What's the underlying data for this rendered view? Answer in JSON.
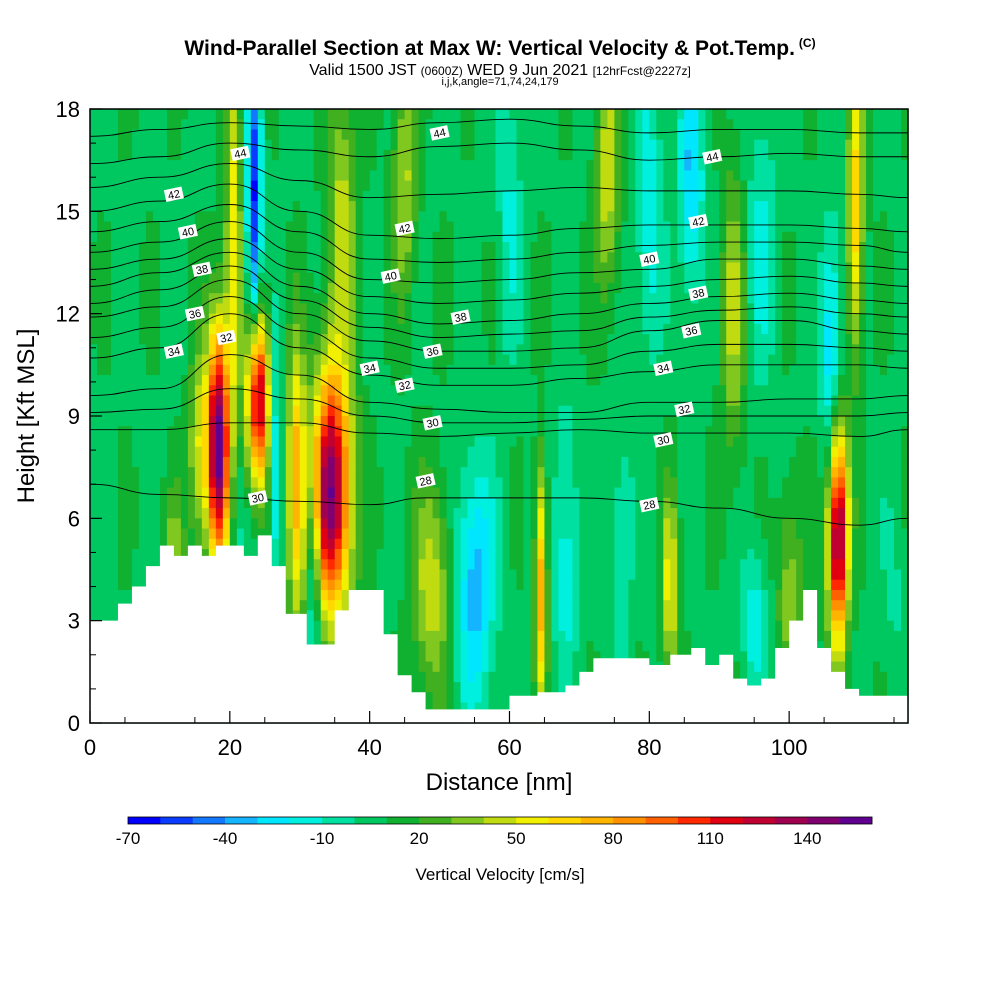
{
  "header": {
    "title": "Wind-Parallel Section at Max W: Vertical Velocity & Pot.Temp.",
    "title_mark": "(C)",
    "sub_left": "Valid 1500 JST",
    "sub_small1": "(0600Z)",
    "sub_mid": "WED 9 Jun 2021",
    "sub_small2": "[12hrFcst@2227z]",
    "params": "i,j,k,angle=71,74,24,179"
  },
  "chart_data": {
    "type": "heatmap",
    "title": "Wind-Parallel Section at Max W: Vertical Velocity & Pot.Temp.",
    "xlabel": "Distance [nm]",
    "ylabel": "Height [Kft MSL]",
    "xlim": [
      0,
      117
    ],
    "ylim": [
      0,
      18
    ],
    "x_ticks": [
      0,
      20,
      40,
      60,
      80,
      100
    ],
    "y_ticks": [
      0,
      3,
      6,
      9,
      12,
      15,
      18
    ],
    "colorbar": {
      "title": "Vertical Velocity [cm/s]",
      "tick_labels": [
        "-70",
        "-40",
        "-10",
        "20",
        "50",
        "80",
        "110",
        "140"
      ],
      "colors": [
        "#0000ff",
        "#0a3cff",
        "#1478ff",
        "#14b4ff",
        "#00e6ff",
        "#00f0e0",
        "#00e0a0",
        "#00c860",
        "#10b030",
        "#40b020",
        "#80c820",
        "#c0dc10",
        "#f0f000",
        "#ffd800",
        "#ffb400",
        "#ff9000",
        "#ff6000",
        "#ff2800",
        "#e00010",
        "#c00030",
        "#a00050",
        "#800070",
        "#600090"
      ]
    },
    "w_field": {
      "background_cm_s": 8,
      "cells": [
        {
          "x": 20.5,
          "y": 14,
          "sx": 0.8,
          "sy": 4,
          "w": 50
        },
        {
          "x": 23.5,
          "y": 15,
          "sx": 0.7,
          "sy": 3.5,
          "w": -70
        },
        {
          "x": 18.3,
          "y": 8.2,
          "sx": 1.1,
          "sy": 2.4,
          "w": 150
        },
        {
          "x": 24,
          "y": 9.5,
          "sx": 1.1,
          "sy": 1.8,
          "w": 130
        },
        {
          "x": 29.5,
          "y": 7,
          "sx": 0.9,
          "sy": 2.8,
          "w": 70
        },
        {
          "x": 34.5,
          "y": 6.8,
          "sx": 2,
          "sy": 2.5,
          "w": 140
        },
        {
          "x": 32,
          "y": 4.5,
          "sx": 0.7,
          "sy": 2.5,
          "w": -40
        },
        {
          "x": 26.5,
          "y": 7.5,
          "sx": 0.6,
          "sy": 2.5,
          "w": -35
        },
        {
          "x": 21,
          "y": 6,
          "sx": 0.6,
          "sy": 2.5,
          "w": -15
        },
        {
          "x": 15.5,
          "y": 8,
          "sx": 1,
          "sy": 2,
          "w": 40
        },
        {
          "x": 55,
          "y": 4,
          "sx": 2,
          "sy": 2.5,
          "w": -45
        },
        {
          "x": 49,
          "y": 4,
          "sx": 2,
          "sy": 2.2,
          "w": 40
        },
        {
          "x": 64.5,
          "y": 4,
          "sx": 0.6,
          "sy": 2.5,
          "w": 70
        },
        {
          "x": 68,
          "y": 5,
          "sx": 1.2,
          "sy": 3,
          "w": -25
        },
        {
          "x": 60,
          "y": 15,
          "sx": 1.2,
          "sy": 3,
          "w": -20
        },
        {
          "x": 45,
          "y": 16,
          "sx": 1.2,
          "sy": 2.5,
          "w": 35
        },
        {
          "x": 36,
          "y": 15,
          "sx": 1.5,
          "sy": 3,
          "w": 35
        },
        {
          "x": 74,
          "y": 16,
          "sx": 1.2,
          "sy": 2.5,
          "w": 40
        },
        {
          "x": 80,
          "y": 15,
          "sx": 1.4,
          "sy": 3,
          "w": -25
        },
        {
          "x": 86,
          "y": 16,
          "sx": 1.2,
          "sy": 2.5,
          "w": -40
        },
        {
          "x": 92,
          "y": 12,
          "sx": 1.2,
          "sy": 3,
          "w": 35
        },
        {
          "x": 96,
          "y": 14,
          "sx": 1.5,
          "sy": 3,
          "w": -20
        },
        {
          "x": 107,
          "y": 5.5,
          "sx": 1,
          "sy": 2.2,
          "w": 140
        },
        {
          "x": 106,
          "y": 11,
          "sx": 1,
          "sy": 2.5,
          "w": -40
        },
        {
          "x": 109.5,
          "y": 15,
          "sx": 0.8,
          "sy": 3,
          "w": 60
        },
        {
          "x": 112,
          "y": 14,
          "sx": 1.5,
          "sy": 3,
          "w": 0
        },
        {
          "x": 95,
          "y": 3,
          "sx": 1.2,
          "sy": 1.5,
          "w": -25
        },
        {
          "x": 83,
          "y": 4,
          "sx": 0.8,
          "sy": 2,
          "w": 50
        },
        {
          "x": 76,
          "y": 5,
          "sx": 1,
          "sy": 2.5,
          "w": -20
        },
        {
          "x": 5,
          "y": 12,
          "sx": 2.5,
          "sy": 3,
          "w": 0
        },
        {
          "x": 12,
          "y": 4.5,
          "sx": 1,
          "sy": 1.5,
          "w": 30
        },
        {
          "x": 100,
          "y": 4,
          "sx": 1.2,
          "sy": 2,
          "w": 30
        },
        {
          "x": 115,
          "y": 4,
          "sx": 1.2,
          "sy": 2,
          "w": -10
        }
      ]
    },
    "terrain_kft": [
      [
        0,
        3
      ],
      [
        4,
        3.5
      ],
      [
        6,
        4
      ],
      [
        8,
        4.6
      ],
      [
        10,
        5.2
      ],
      [
        12,
        4.9
      ],
      [
        14,
        5.2
      ],
      [
        16,
        4.9
      ],
      [
        18,
        5.2
      ],
      [
        20,
        5.2
      ],
      [
        22,
        4.9
      ],
      [
        24,
        5.5
      ],
      [
        26,
        4.6
      ],
      [
        28,
        3.2
      ],
      [
        31,
        2.3
      ],
      [
        33,
        2.3
      ],
      [
        35,
        3.3
      ],
      [
        37,
        3.9
      ],
      [
        40,
        3.9
      ],
      [
        42,
        2.6
      ],
      [
        44,
        1.4
      ],
      [
        46,
        0.9
      ],
      [
        48,
        0.4
      ],
      [
        56,
        0.4
      ],
      [
        60,
        0.8
      ],
      [
        64,
        0.9
      ],
      [
        68,
        1.1
      ],
      [
        70,
        1.5
      ],
      [
        72,
        1.9
      ],
      [
        78,
        1.9
      ],
      [
        80,
        1.7
      ],
      [
        83,
        2.0
      ],
      [
        86,
        2.2
      ],
      [
        88,
        1.7
      ],
      [
        90,
        2.0
      ],
      [
        92,
        1.3
      ],
      [
        94,
        1.1
      ],
      [
        96,
        1.3
      ],
      [
        98,
        2.2
      ],
      [
        100,
        3.0
      ],
      [
        102,
        3.9
      ],
      [
        104,
        2.2
      ],
      [
        106,
        1.5
      ],
      [
        108,
        1.0
      ],
      [
        110,
        0.8
      ],
      [
        117,
        0.8
      ]
    ],
    "theta_contours": {
      "unit": "label value as printed (Kelvin shorthand)",
      "lines": [
        {
          "label": 28,
          "x": [
            0,
            10,
            20,
            30,
            40,
            48,
            60,
            70,
            80,
            90,
            100,
            110,
            117
          ],
          "y": [
            7.0,
            6.7,
            6.6,
            6.5,
            6.4,
            6.6,
            6.6,
            6.6,
            6.5,
            6.3,
            6.0,
            5.8,
            6.0
          ]
        },
        {
          "label": 30,
          "x": [
            0,
            10,
            20,
            30,
            40,
            50,
            60,
            70,
            80,
            90,
            100,
            110,
            117
          ],
          "y": [
            8.6,
            8.6,
            8.8,
            8.8,
            8.5,
            8.4,
            8.5,
            8.6,
            8.5,
            8.5,
            8.5,
            8.4,
            8.6
          ]
        },
        {
          "label": 32,
          "x": [
            0,
            10,
            20,
            30,
            40,
            50,
            60,
            70,
            80,
            90,
            100,
            110,
            117
          ],
          "y": [
            9.6,
            9.8,
            10.8,
            10.2,
            9.4,
            9.2,
            9.1,
            9.1,
            9.4,
            9.4,
            9.5,
            9.5,
            9.6
          ]
        },
        {
          "label": 34,
          "x": [
            0,
            10,
            20,
            30,
            40,
            50,
            60,
            70,
            80,
            90,
            100,
            110,
            117
          ],
          "y": [
            10.7,
            11.0,
            12.0,
            11.0,
            10.2,
            9.9,
            9.9,
            10.1,
            10.3,
            10.5,
            10.5,
            10.5,
            10.4
          ]
        },
        {
          "label": 36,
          "x": [
            0,
            10,
            20,
            30,
            40,
            50,
            60,
            70,
            80,
            90,
            100,
            110,
            117
          ],
          "y": [
            11.9,
            12.2,
            13.0,
            12.0,
            11.2,
            10.9,
            10.9,
            11.0,
            11.5,
            11.8,
            11.8,
            11.5,
            11.4
          ]
        },
        {
          "label": 38,
          "x": [
            0,
            10,
            20,
            30,
            40,
            50,
            60,
            70,
            80,
            90,
            100,
            110,
            117
          ],
          "y": [
            12.8,
            13.2,
            13.8,
            12.8,
            12.0,
            11.7,
            11.8,
            12.0,
            12.3,
            12.5,
            12.6,
            12.4,
            12.3
          ]
        },
        {
          "label": 40,
          "x": [
            0,
            10,
            20,
            30,
            40,
            50,
            60,
            70,
            80,
            90,
            100,
            110,
            117
          ],
          "y": [
            13.8,
            14.1,
            14.7,
            13.8,
            13.0,
            12.9,
            13.0,
            13.2,
            13.3,
            13.6,
            13.6,
            13.4,
            13.3
          ]
        },
        {
          "label": 42,
          "x": [
            0,
            10,
            20,
            30,
            40,
            50,
            60,
            70,
            80,
            90,
            100,
            110,
            117
          ],
          "y": [
            15.0,
            15.3,
            15.8,
            15.0,
            14.3,
            14.2,
            14.3,
            14.5,
            14.6,
            14.6,
            14.6,
            14.5,
            14.4
          ]
        },
        {
          "label": 44,
          "x": [
            0,
            10,
            20,
            30,
            40,
            50,
            60,
            70,
            80,
            90,
            100,
            110,
            117
          ],
          "y": [
            16.4,
            16.6,
            17.0,
            16.8,
            16.6,
            16.9,
            17.0,
            16.8,
            16.5,
            16.6,
            16.7,
            16.6,
            16.6
          ]
        }
      ],
      "extra_lines": [
        {
          "x": [
            0,
            10,
            20,
            30,
            40,
            50,
            60,
            70,
            80,
            90,
            100,
            110,
            117
          ],
          "y": [
            11.3,
            11.6,
            12.5,
            11.5,
            10.7,
            10.4,
            10.4,
            10.5,
            10.9,
            11.1,
            11.1,
            11.0,
            10.9
          ]
        },
        {
          "x": [
            0,
            10,
            20,
            30,
            40,
            50,
            60,
            70,
            80,
            90,
            100,
            110,
            117
          ],
          "y": [
            12.3,
            12.7,
            13.4,
            12.4,
            11.6,
            11.3,
            11.4,
            11.5,
            11.9,
            12.1,
            12.2,
            12.0,
            11.9
          ]
        },
        {
          "x": [
            0,
            10,
            20,
            30,
            40,
            50,
            60,
            70,
            80,
            90,
            100,
            110,
            117
          ],
          "y": [
            13.3,
            13.6,
            14.2,
            13.3,
            12.5,
            12.3,
            12.4,
            12.6,
            12.8,
            13.0,
            13.1,
            12.9,
            12.8
          ]
        },
        {
          "x": [
            0,
            10,
            20,
            30,
            40,
            50,
            60,
            70,
            80,
            90,
            100,
            110,
            117
          ],
          "y": [
            14.4,
            14.7,
            15.2,
            14.4,
            13.6,
            13.5,
            13.6,
            13.8,
            14.0,
            14.1,
            14.1,
            14.0,
            13.8
          ]
        },
        {
          "x": [
            0,
            10,
            20,
            30,
            40,
            50,
            60,
            70,
            80,
            90,
            100,
            110,
            117
          ],
          "y": [
            15.7,
            16.0,
            16.4,
            15.9,
            15.4,
            15.5,
            15.6,
            15.7,
            15.6,
            15.6,
            15.6,
            15.5,
            15.4
          ]
        },
        {
          "x": [
            0,
            10,
            20,
            30,
            40,
            50,
            60,
            70,
            80,
            90,
            100,
            110,
            117
          ],
          "y": [
            17.2,
            17.4,
            17.6,
            17.5,
            17.4,
            17.6,
            17.7,
            17.5,
            17.3,
            17.4,
            17.4,
            17.3,
            17.3
          ]
        },
        {
          "x": [
            0,
            10,
            20,
            30,
            40,
            50,
            60,
            70,
            80,
            90,
            100,
            110,
            117
          ],
          "y": [
            9.1,
            9.2,
            9.8,
            9.5,
            9.0,
            8.8,
            8.8,
            8.9,
            9.0,
            9.0,
            9.0,
            9.0,
            9.1
          ]
        }
      ],
      "label_positions": [
        {
          "text": "44",
          "x": 50,
          "y": 17.3
        },
        {
          "text": "44",
          "x": 21.5,
          "y": 16.7
        },
        {
          "text": "44",
          "x": 89,
          "y": 16.6
        },
        {
          "text": "42",
          "x": 12,
          "y": 15.5
        },
        {
          "text": "42",
          "x": 45,
          "y": 14.5
        },
        {
          "text": "42",
          "x": 87,
          "y": 14.7
        },
        {
          "text": "40",
          "x": 14,
          "y": 14.4
        },
        {
          "text": "40",
          "x": 43,
          "y": 13.1
        },
        {
          "text": "40",
          "x": 80,
          "y": 13.6
        },
        {
          "text": "38",
          "x": 16,
          "y": 13.3
        },
        {
          "text": "38",
          "x": 53,
          "y": 11.9
        },
        {
          "text": "38",
          "x": 87,
          "y": 12.6
        },
        {
          "text": "36",
          "x": 15,
          "y": 12.0
        },
        {
          "text": "36",
          "x": 49,
          "y": 10.9
        },
        {
          "text": "36",
          "x": 86,
          "y": 11.5
        },
        {
          "text": "34",
          "x": 12,
          "y": 10.9
        },
        {
          "text": "34",
          "x": 40,
          "y": 10.4
        },
        {
          "text": "34",
          "x": 82,
          "y": 10.4
        },
        {
          "text": "32",
          "x": 19.5,
          "y": 11.3
        },
        {
          "text": "32",
          "x": 45,
          "y": 9.9
        },
        {
          "text": "32",
          "x": 85,
          "y": 9.2
        },
        {
          "text": "30",
          "x": 49,
          "y": 8.8
        },
        {
          "text": "30",
          "x": 82,
          "y": 8.3
        },
        {
          "text": "30",
          "x": 24,
          "y": 6.6
        },
        {
          "text": "28",
          "x": 48,
          "y": 7.1
        },
        {
          "text": "28",
          "x": 80,
          "y": 6.4
        }
      ]
    }
  }
}
